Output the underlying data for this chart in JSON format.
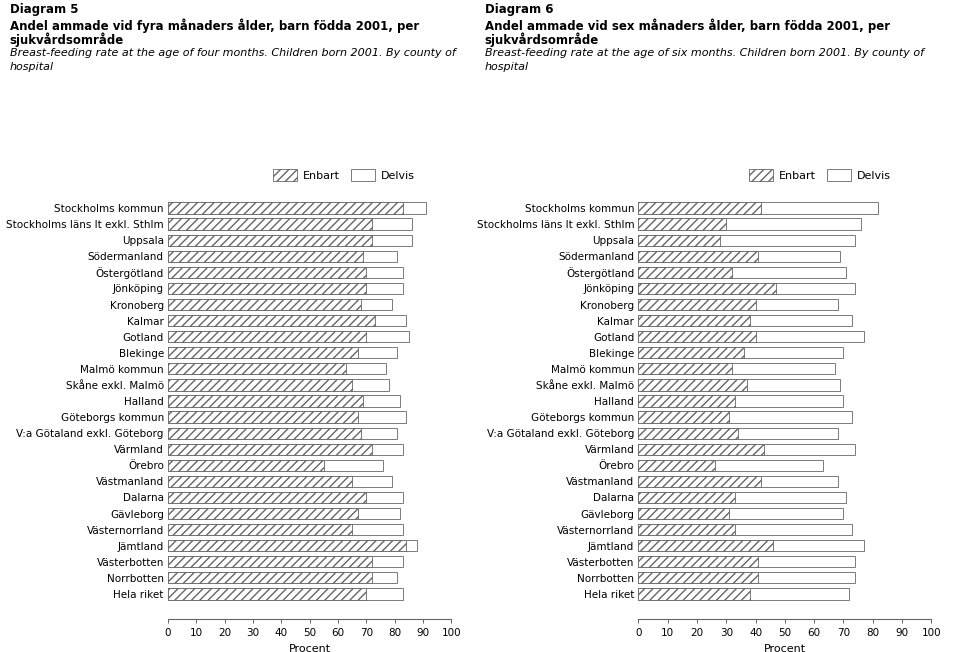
{
  "categories": [
    "Stockholms kommun",
    "Stockholms läns lt exkl. Sthlm",
    "Uppsala",
    "Södermanland",
    "Östergötland",
    "Jönköping",
    "Kronoberg",
    "Kalmar",
    "Gotland",
    "Blekinge",
    "Malmö kommun",
    "Skåne exkl. Malmö",
    "Halland",
    "Göteborgs kommun",
    "V:a Götaland exkl. Göteborg",
    "Värmland",
    "Örebro",
    "Västmanland",
    "Dalarna",
    "Gävleborg",
    "Västernorrland",
    "Jämtland",
    "Västerbotten",
    "Norrbotten",
    "Hela riket"
  ],
  "chart1": {
    "diagram_label": "Diagram 5",
    "title_line1": "Andel ammade vid fyra månaders ålder, barn födda 2001, per",
    "title_line2": "sjukvårdsområde",
    "en_line1": "Breast-feeding rate at the age of four months. Children born 2001. By county of",
    "en_line2": "hospital",
    "enbart": [
      83,
      72,
      72,
      69,
      70,
      70,
      68,
      73,
      70,
      67,
      63,
      65,
      69,
      67,
      68,
      72,
      55,
      65,
      70,
      67,
      65,
      84,
      72,
      72,
      70
    ],
    "delvis": [
      91,
      86,
      86,
      81,
      83,
      83,
      79,
      84,
      85,
      81,
      77,
      78,
      82,
      84,
      81,
      83,
      76,
      79,
      83,
      82,
      83,
      88,
      83,
      81,
      83
    ]
  },
  "chart2": {
    "diagram_label": "Diagram 6",
    "title_line1": "Andel ammade vid sex månaders ålder, barn födda 2001, per",
    "title_line2": "sjukvårdsområde",
    "en_line1": "Breast-feeding rate at the age of six months. Children born 2001. By county of",
    "en_line2": "hospital",
    "enbart": [
      42,
      30,
      28,
      41,
      32,
      47,
      40,
      38,
      40,
      36,
      32,
      37,
      33,
      31,
      34,
      43,
      26,
      42,
      33,
      31,
      33,
      46,
      41,
      41,
      38
    ],
    "delvis": [
      82,
      76,
      74,
      69,
      71,
      74,
      68,
      73,
      77,
      70,
      67,
      69,
      70,
      73,
      68,
      74,
      63,
      68,
      71,
      70,
      73,
      77,
      74,
      74,
      72
    ]
  },
  "hatch_pattern": "////",
  "bar_edgecolor": "#666666",
  "xlabel": "Procent",
  "xlim": [
    0,
    100
  ],
  "xticks": [
    0,
    10,
    20,
    30,
    40,
    50,
    60,
    70,
    80,
    90,
    100
  ],
  "legend_enbart": "Enbart",
  "legend_delvis": "Delvis",
  "bar_height": 0.7,
  "title_fontsize": 8.5,
  "bold_fontsize": 8.5,
  "label_fontsize": 8,
  "tick_fontsize": 7.5
}
